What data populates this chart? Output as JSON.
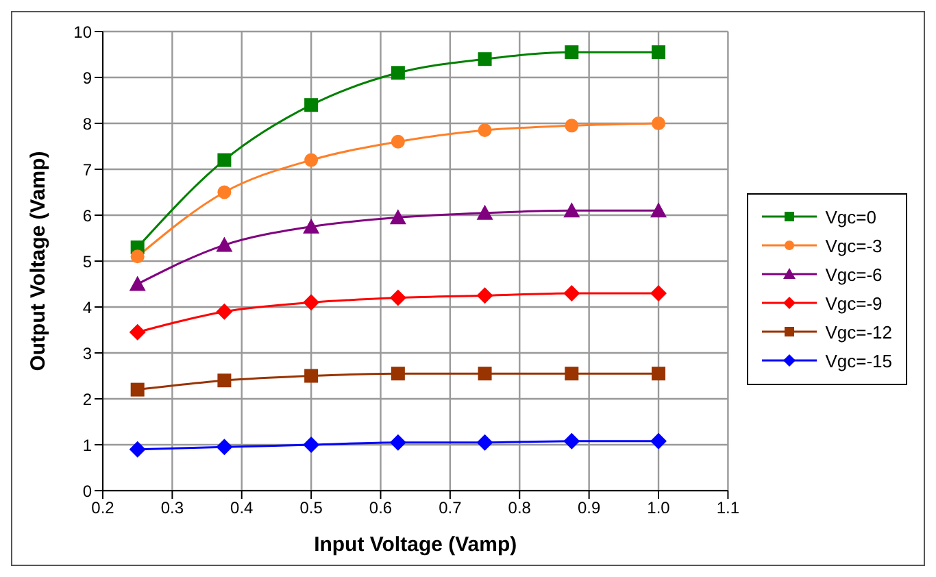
{
  "chart_data": {
    "type": "line",
    "xlabel": "Input Voltage (Vamp)",
    "ylabel": "Output Voltage (Vamp)",
    "x": [
      0.25,
      0.375,
      0.5,
      0.625,
      0.75,
      0.875,
      1.0
    ],
    "xlim": [
      0.2,
      1.1
    ],
    "xticks": [
      {
        "value": 0.2,
        "label": "0.2"
      },
      {
        "value": 0.3,
        "label": "0.3"
      },
      {
        "value": 0.4,
        "label": "0.4"
      },
      {
        "value": 0.5,
        "label": "0.5"
      },
      {
        "value": 0.6,
        "label": "0.6"
      },
      {
        "value": 0.7,
        "label": "0.7"
      },
      {
        "value": 0.8,
        "label": "0.8"
      },
      {
        "value": 0.9,
        "label": "0.9"
      },
      {
        "value": 1.0,
        "label": "1.0"
      },
      {
        "value": 1.1,
        "label": "1.1"
      }
    ],
    "ylim": [
      0,
      10
    ],
    "yticks": [
      0,
      1,
      2,
      3,
      4,
      5,
      6,
      7,
      8,
      9,
      10
    ],
    "grid": true,
    "legend": "right",
    "series": [
      {
        "name": "Vgc=0",
        "color": "#008000",
        "marker": "square",
        "values": [
          5.3,
          7.2,
          8.4,
          9.1,
          9.4,
          9.55,
          9.55
        ]
      },
      {
        "name": "Vgc=-3",
        "color": "#ff7f27",
        "marker": "circle",
        "values": [
          5.1,
          6.5,
          7.2,
          7.6,
          7.85,
          7.95,
          8.0
        ]
      },
      {
        "name": "Vgc=-6",
        "color": "#800080",
        "marker": "triangle",
        "values": [
          4.5,
          5.35,
          5.75,
          5.95,
          6.05,
          6.1,
          6.1
        ]
      },
      {
        "name": "Vgc=-9",
        "color": "#ff0000",
        "marker": "diamond",
        "values": [
          3.45,
          3.9,
          4.1,
          4.2,
          4.25,
          4.3,
          4.3
        ]
      },
      {
        "name": "Vgc=-12",
        "color": "#993300",
        "marker": "square",
        "values": [
          2.2,
          2.4,
          2.5,
          2.55,
          2.55,
          2.55,
          2.55
        ]
      },
      {
        "name": "Vgc=-15",
        "color": "#0000ff",
        "marker": "diamond",
        "values": [
          0.9,
          0.95,
          1.0,
          1.05,
          1.05,
          1.08,
          1.08
        ]
      }
    ]
  }
}
